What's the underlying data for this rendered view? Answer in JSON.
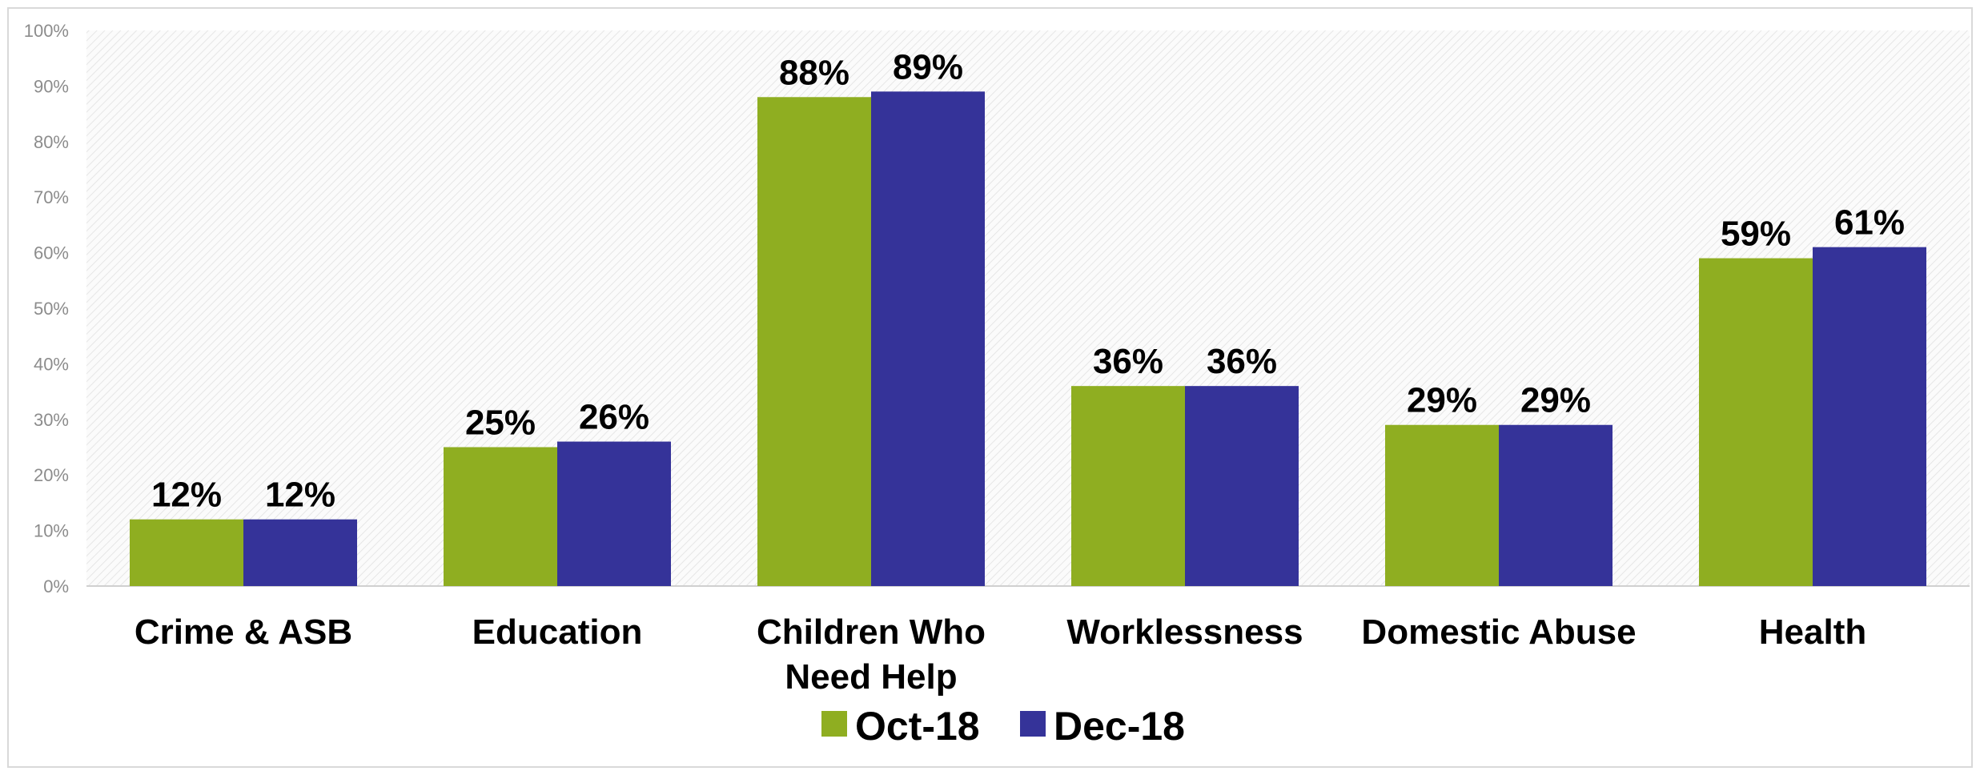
{
  "chart_data": {
    "type": "bar",
    "categories": [
      "Crime & ASB",
      "Education",
      "Children Who Need Help",
      "Worklessness",
      "Domestic Abuse",
      "Health"
    ],
    "category_lines": [
      [
        "Crime & ASB"
      ],
      [
        "Education"
      ],
      [
        "Children Who",
        "Need Help"
      ],
      [
        "Worklessness"
      ],
      [
        "Domestic Abuse"
      ],
      [
        "Health"
      ]
    ],
    "series": [
      {
        "name": "Oct-18",
        "color": "#8fae21",
        "values": [
          12,
          25,
          88,
          36,
          29,
          59
        ],
        "labels": [
          "12%",
          "25%",
          "88%",
          "36%",
          "29%",
          "59%"
        ]
      },
      {
        "name": "Dec-18",
        "color": "#353399",
        "values": [
          12,
          26,
          89,
          36,
          29,
          61
        ],
        "labels": [
          "12%",
          "26%",
          "89%",
          "36%",
          "29%",
          "61%"
        ]
      }
    ],
    "ylim": [
      0,
      100
    ],
    "yticks": [
      0,
      10,
      20,
      30,
      40,
      50,
      60,
      70,
      80,
      90,
      100
    ],
    "ytick_labels": [
      "0%",
      "10%",
      "20%",
      "30%",
      "40%",
      "50%",
      "60%",
      "70%",
      "80%",
      "90%",
      "100%"
    ],
    "title": "",
    "xlabel": "",
    "ylabel": "",
    "grid": false,
    "legend": "bottom-center"
  }
}
